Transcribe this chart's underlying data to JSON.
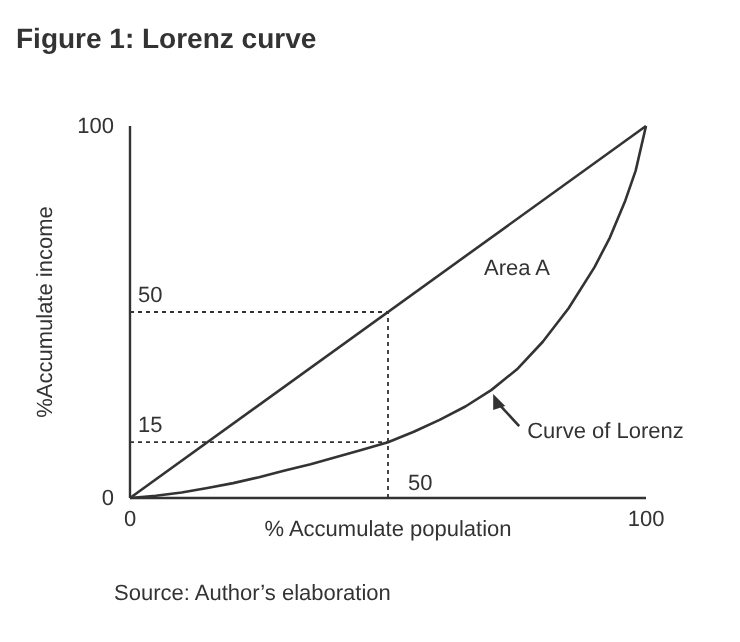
{
  "chart_data": {
    "type": "line",
    "title": "Figure 1: Lorenz curve",
    "xlabel": "% Accumulate population",
    "ylabel": "%Accumulate income",
    "xlim": [
      0,
      100
    ],
    "ylim": [
      0,
      100
    ],
    "xticks": [
      0,
      100
    ],
    "yticks": [
      0,
      100
    ],
    "series": [
      {
        "color": "#333333",
        "x": [
          0,
          100
        ],
        "values": [
          0,
          100
        ]
      },
      {
        "color": "#333333",
        "x": [
          0,
          5,
          10,
          15,
          20,
          25,
          30,
          35,
          40,
          45,
          50,
          55,
          60,
          65,
          70,
          75,
          80,
          85,
          90,
          93,
          96,
          98,
          100
        ],
        "values": [
          0,
          0.6,
          1.5,
          2.7,
          4,
          5.6,
          7.4,
          9.1,
          11,
          13,
          15,
          17.8,
          21,
          24.6,
          29,
          34.6,
          42,
          51,
          62,
          70,
          80,
          88,
          100
        ]
      },
      {
        "color": "#333333",
        "line_style": "dotted",
        "x": [
          0,
          50,
          50
        ],
        "values": [
          50,
          50,
          0
        ]
      },
      {
        "color": "#333333",
        "line_style": "dotted",
        "x": [
          0,
          50
        ],
        "values": [
          15,
          15
        ]
      }
    ],
    "annotations": [
      "50",
      "15",
      "50",
      "Area A",
      {
        "text": "Curve of Lorenz",
        "x": 70,
        "y": 29
      },
      "Source: Author’s elaboration"
    ]
  }
}
